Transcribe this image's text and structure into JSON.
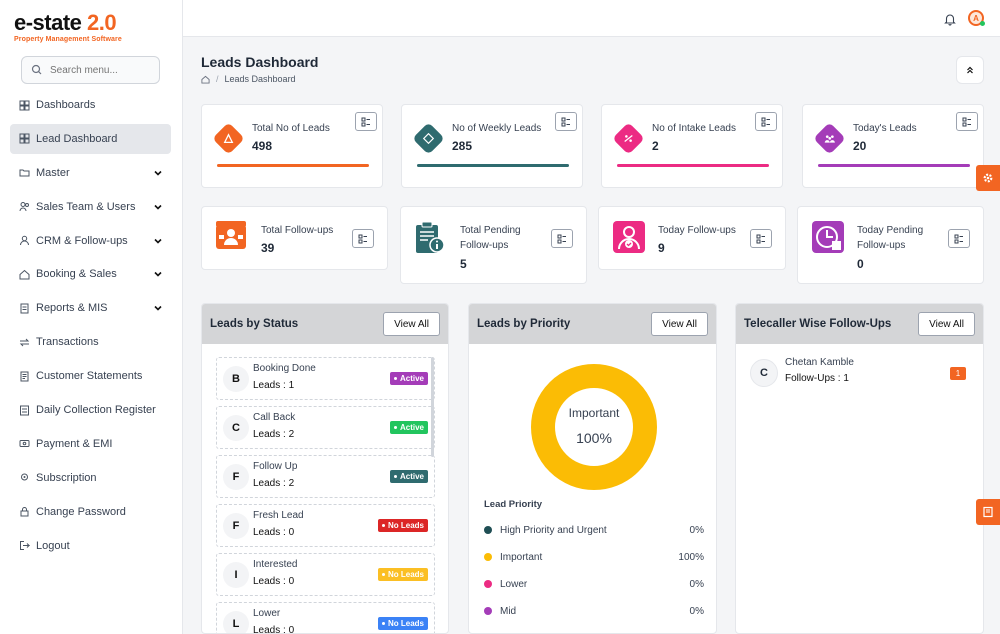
{
  "app": {
    "logo_text": "e-state",
    "logo_version": "2.0",
    "logo_tagline": "Property Management Software"
  },
  "search": {
    "placeholder": "Search menu..."
  },
  "nav": [
    {
      "label": "Dashboards",
      "icon": "dashboard-icon",
      "caret": false,
      "active": false
    },
    {
      "label": "Lead Dashboard",
      "icon": "grid-icon",
      "caret": false,
      "active": true
    },
    {
      "label": "Master",
      "icon": "folder-icon",
      "caret": true,
      "active": false
    },
    {
      "label": "Sales Team & Users",
      "icon": "users-icon",
      "caret": true,
      "active": false
    },
    {
      "label": "CRM & Follow-ups",
      "icon": "user-icon",
      "caret": true,
      "active": false
    },
    {
      "label": "Booking & Sales",
      "icon": "home-icon",
      "caret": true,
      "active": false
    },
    {
      "label": "Reports & MIS",
      "icon": "document-icon",
      "caret": true,
      "active": false
    },
    {
      "label": "Transactions",
      "icon": "transfer-icon",
      "caret": false,
      "active": false
    },
    {
      "label": "Customer Statements",
      "icon": "statement-icon",
      "caret": false,
      "active": false
    },
    {
      "label": "Daily Collection Register",
      "icon": "register-icon",
      "caret": false,
      "active": false
    },
    {
      "label": "Payment & EMI",
      "icon": "payment-icon",
      "caret": false,
      "active": false
    },
    {
      "label": "Subscription",
      "icon": "location-icon",
      "caret": false,
      "active": false
    },
    {
      "label": "Change Password",
      "icon": "lock-icon",
      "caret": false,
      "active": false
    },
    {
      "label": "Logout",
      "icon": "logout-icon",
      "caret": false,
      "active": false
    }
  ],
  "header": {
    "title": "Leads Dashboard",
    "breadcrumb": "Leads Dashboard"
  },
  "stats_row1": [
    {
      "label": "Total No of Leads",
      "value": "498",
      "color": "#f26522",
      "icon": "triangle-icon"
    },
    {
      "label": "No of Weekly Leads",
      "value": "285",
      "color": "#2f6b6f",
      "icon": "calendar-icon"
    },
    {
      "label": "No of Intake Leads",
      "value": "2",
      "color": "#ec2b83",
      "icon": "intake-icon"
    },
    {
      "label": "Today's Leads",
      "value": "20",
      "color": "#a43cb8",
      "icon": "people-icon"
    }
  ],
  "stats_row2": [
    {
      "label_line1": "Total Follow-ups",
      "label_line2": "",
      "value": "39",
      "color": "#f26522",
      "icon": "followup-icon"
    },
    {
      "label_line1": "Total Pending",
      "label_line2": "Follow-ups",
      "value": "5",
      "color": "#2f6b6f",
      "icon": "clipboard-icon"
    },
    {
      "label_line1": "Today Follow-ups",
      "label_line2": "",
      "value": "9",
      "color": "#ec2b83",
      "icon": "user-check-icon"
    },
    {
      "label_line1": "Today Pending",
      "label_line2": "Follow-ups",
      "value": "0",
      "color": "#a43cb8",
      "icon": "clock-icon"
    }
  ],
  "panels": {
    "status": {
      "title": "Leads by Status",
      "view_all": "View All",
      "rows": [
        {
          "letter": "B",
          "name": "Booking Done",
          "count": "Leads : 1",
          "badge": "Active",
          "badge_color": "#a43cb8"
        },
        {
          "letter": "C",
          "name": "Call Back",
          "count": "Leads : 2",
          "badge": "Active",
          "badge_color": "#22c55e"
        },
        {
          "letter": "F",
          "name": "Follow Up",
          "count": "Leads : 2",
          "badge": "Active",
          "badge_color": "#2f6b6f"
        },
        {
          "letter": "F",
          "name": "Fresh Lead",
          "count": "Leads : 0",
          "badge": "No Leads",
          "badge_color": "#dc2626"
        },
        {
          "letter": "I",
          "name": "Interested",
          "count": "Leads : 0",
          "badge": "No Leads",
          "badge_color": "#fbbf24"
        },
        {
          "letter": "L",
          "name": "Lower",
          "count": "Leads : 0",
          "badge": "No Leads",
          "badge_color": "#3b82f6"
        }
      ]
    },
    "priority": {
      "title": "Leads by Priority",
      "view_all": "View All",
      "donut_label": "Important",
      "donut_value": "100%",
      "legend_title": "Lead Priority",
      "items": [
        {
          "label": "High Priority and Urgent",
          "value": "0%",
          "color": "#1f4e54"
        },
        {
          "label": "Important",
          "value": "100%",
          "color": "#fbbc05"
        },
        {
          "label": "Lower",
          "value": "0%",
          "color": "#ec2b83"
        },
        {
          "label": "Mid",
          "value": "0%",
          "color": "#a43cb8"
        }
      ]
    },
    "telecaller": {
      "title": "Telecaller Wise Follow-Ups",
      "view_all": "View All",
      "rows": [
        {
          "letter": "C",
          "name": "Chetan Kamble",
          "followups": "Follow-Ups : 1",
          "count": "1"
        }
      ]
    }
  },
  "chart_data": {
    "type": "pie",
    "categories": [
      "High Priority and Urgent",
      "Important",
      "Lower",
      "Mid"
    ],
    "values": [
      0,
      100,
      0,
      0
    ],
    "title": "Leads by Priority"
  },
  "colors": {
    "accent": "#f26522",
    "teal": "#2f6b6f",
    "pink": "#ec2b83",
    "purple": "#a43cb8",
    "donut": "#fbbc05"
  }
}
